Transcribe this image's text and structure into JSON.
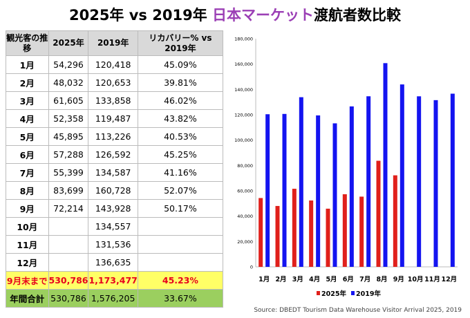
{
  "title": {
    "part1": "2025年 vs 2019年 ",
    "accent": "日本マーケット",
    "part2": "渡航者数比較"
  },
  "colors": {
    "accent": "#9b3fb5",
    "s2025": "#e0201b",
    "s2019": "#1414f0",
    "ytd_bg": "#ffff66",
    "total_bg": "#9bcf5f"
  },
  "table": {
    "headers": [
      "観光客の推移",
      "2025年",
      "2019年",
      "リカバリー% vs 2019年"
    ],
    "rows": [
      [
        "1月",
        "54,296",
        "120,418",
        "45.09%"
      ],
      [
        "2月",
        "48,032",
        "120,653",
        "39.81%"
      ],
      [
        "3月",
        "61,605",
        "133,858",
        "46.02%"
      ],
      [
        "4月",
        "52,358",
        "119,487",
        "43.82%"
      ],
      [
        "5月",
        "45,895",
        "113,226",
        "40.53%"
      ],
      [
        "6月",
        "57,288",
        "126,592",
        "45.25%"
      ],
      [
        "7月",
        "55,399",
        "134,587",
        "41.16%"
      ],
      [
        "8月",
        "83,699",
        "160,728",
        "52.07%"
      ],
      [
        "9月",
        "72,214",
        "143,928",
        "50.17%"
      ],
      [
        "10月",
        "",
        "134,557",
        ""
      ],
      [
        "11月",
        "",
        "131,536",
        ""
      ],
      [
        "12月",
        "",
        "136,635",
        ""
      ]
    ],
    "ytd": [
      "9月末まで",
      "530,786",
      "1,173,477",
      "45.23%"
    ],
    "total": [
      "年間合計",
      "530,786",
      "1,576,205",
      "33.67%"
    ]
  },
  "chart_data": {
    "type": "bar",
    "categories": [
      "1月",
      "2月",
      "3月",
      "4月",
      "5月",
      "6月",
      "7月",
      "8月",
      "9月",
      "10月",
      "11月",
      "12月"
    ],
    "series": [
      {
        "name": "2025年",
        "values": [
          54296,
          48032,
          61605,
          52358,
          45895,
          57288,
          55399,
          83699,
          72214,
          null,
          null,
          null
        ]
      },
      {
        "name": "2019年",
        "values": [
          120418,
          120653,
          133858,
          119487,
          113226,
          126592,
          134587,
          160728,
          143928,
          134557,
          131536,
          136635
        ]
      }
    ],
    "ylim": [
      0,
      180000
    ],
    "yticks": [
      0,
      20000,
      40000,
      60000,
      80000,
      100000,
      120000,
      140000,
      160000,
      180000
    ],
    "ytick_labels": [
      "0",
      "20,000",
      "40,000",
      "60,000",
      "80,000",
      "100,000",
      "120,000",
      "140,000",
      "160,000",
      "180,000"
    ],
    "grid": false,
    "legend": "bottom"
  },
  "source": "Source: DBEDT Tourism Data Warehouse Visitor Arrival 2025, 2019"
}
